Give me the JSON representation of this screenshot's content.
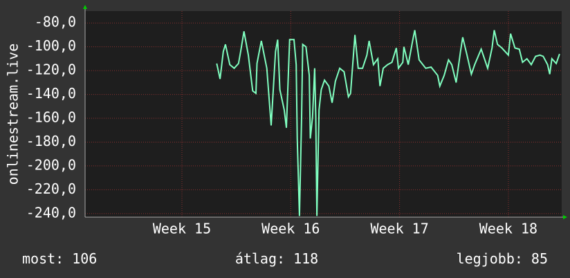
{
  "chart_data": {
    "type": "line",
    "y_label": "onlinestream.live",
    "x": [
      15.32,
      15.35,
      15.38,
      15.4,
      15.44,
      15.48,
      15.52,
      15.54,
      15.57,
      15.61,
      15.65,
      15.68,
      15.69,
      15.73,
      15.78,
      15.82,
      15.86,
      15.88,
      15.9,
      15.94,
      15.96,
      15.99,
      16.03,
      16.05,
      16.06,
      16.08,
      16.1,
      16.11,
      16.14,
      16.17,
      16.18,
      16.2,
      16.22,
      16.23,
      16.24,
      16.26,
      16.28,
      16.31,
      16.35,
      16.38,
      16.41,
      16.45,
      16.49,
      16.53,
      16.55,
      16.59,
      16.62,
      16.66,
      16.7,
      16.72,
      16.76,
      16.8,
      16.82,
      16.85,
      16.89,
      16.93,
      16.97,
      16.99,
      17.03,
      17.04,
      17.08,
      17.12,
      17.14,
      17.18,
      17.24,
      17.29,
      17.35,
      17.37,
      17.41,
      17.45,
      17.48,
      17.52,
      17.56,
      17.58,
      17.62,
      17.66,
      17.69,
      17.75,
      17.81,
      17.85,
      17.87,
      17.9,
      17.94,
      18.0,
      18.02,
      18.06,
      18.1,
      18.13,
      18.17,
      18.21,
      18.25,
      18.29,
      18.32,
      18.36,
      18.38,
      18.4,
      18.44,
      18.47
    ],
    "series": [
      {
        "name": "onlinestream.live",
        "color": "#80ffc0",
        "values": [
          -114,
          -127,
          -104,
          -98,
          -115,
          -118,
          -114,
          -104,
          -87,
          -107,
          -137,
          -139,
          -114,
          -95,
          -118,
          -166,
          -104,
          -94,
          -136,
          -153,
          -168,
          -94,
          -94,
          -115,
          -177,
          -242,
          -159,
          -98,
          -100,
          -124,
          -177,
          -159,
          -118,
          -159,
          -242,
          -153,
          -136,
          -128,
          -133,
          -147,
          -129,
          -118,
          -121,
          -142,
          -139,
          -90,
          -118,
          -118,
          -107,
          -95,
          -115,
          -110,
          -133,
          -118,
          -115,
          -113,
          -101,
          -118,
          -113,
          -100,
          -115,
          -95,
          -86,
          -111,
          -118,
          -117,
          -124,
          -133,
          -124,
          -111,
          -115,
          -130,
          -104,
          -92,
          -107,
          -123,
          -115,
          -102,
          -118,
          -101,
          -86,
          -98,
          -101,
          -107,
          -89,
          -101,
          -102,
          -113,
          -110,
          -115,
          -108,
          -107,
          -108,
          -115,
          -123,
          -110,
          -114,
          -106
        ]
      }
    ],
    "xlim": [
      14.11,
      18.49
    ],
    "xticks": [
      {
        "value": 15,
        "label": "Week 15"
      },
      {
        "value": 16,
        "label": "Week 16"
      },
      {
        "value": 17,
        "label": "Week 17"
      },
      {
        "value": 18,
        "label": "Week 18"
      }
    ],
    "ylim": [
      -243,
      -70
    ],
    "yticks": [
      {
        "value": -80,
        "label": "-80,0"
      },
      {
        "value": -100,
        "label": "-100,0"
      },
      {
        "value": -120,
        "label": "-120,0"
      },
      {
        "value": -140,
        "label": "-140,0"
      },
      {
        "value": -160,
        "label": "-160,0"
      },
      {
        "value": -180,
        "label": "-180,0"
      },
      {
        "value": -200,
        "label": "-200,0"
      },
      {
        "value": -220,
        "label": "-220,0"
      },
      {
        "value": -240,
        "label": "-240,0"
      }
    ],
    "grid": true,
    "footer": [
      {
        "label": "most:",
        "value": 106
      },
      {
        "label": "átlag:",
        "value": 118
      },
      {
        "label": "legjobb:",
        "value": 85
      }
    ]
  }
}
